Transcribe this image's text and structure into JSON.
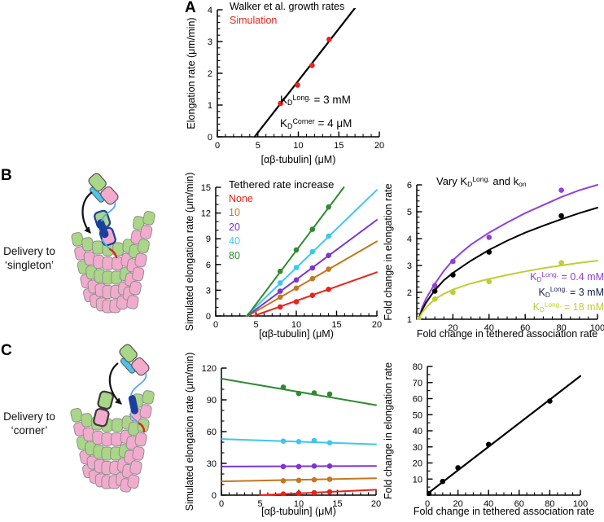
{
  "figure": {
    "panels": [
      {
        "id": "A",
        "label": "A"
      },
      {
        "id": "B",
        "label": "B",
        "caption": [
          "Delivery to",
          "‘singleton’"
        ]
      },
      {
        "id": "C",
        "label": "C",
        "caption": [
          "Delivery to",
          "‘corner’"
        ]
      }
    ]
  },
  "colors": {
    "red": "#e8231a",
    "orange": "#c4771f",
    "purple": "#7b35d2",
    "cyan": "#3dc6f2",
    "green": "#2e8b30",
    "fold_purple": "#9240d8",
    "fold_black": "#000000",
    "fold_black_label": "#15234d",
    "fold_yellow": "#bfce33",
    "lattice_green": "#aad687",
    "lattice_pink": "#f2abcd",
    "tether_blue": "#55a8e8",
    "motor_navy": "#1c3f9e",
    "tip_red": "#e02418"
  },
  "chart_data": [
    {
      "id": "panel_a",
      "type": "scatter",
      "xlabel": "[αβ-tubulin] (μM)",
      "ylabel": "Elongation rate (μm/min)",
      "xlim": [
        0,
        20
      ],
      "ylim": [
        0,
        4
      ],
      "xticks": [
        0,
        5,
        10,
        15,
        20
      ],
      "xminor": 1,
      "yticks": [
        0,
        1,
        2,
        3,
        4
      ],
      "yminor": 0.2,
      "grid": false,
      "legend": {
        "items": [
          {
            "text": "Walker et al. growth rates",
            "color": "#000000"
          },
          {
            "text": "Simulation",
            "color": "#e8231a"
          }
        ]
      },
      "annotations": [
        {
          "text": "K{_D}{^Long.} = 3 mM",
          "color": "#000000"
        },
        {
          "text": "K{_D}{^Corner} = 4 μM",
          "color": "#000000"
        }
      ],
      "series": [
        {
          "name": "fit-line",
          "color": "#000000",
          "width": 2.2,
          "line": [
            [
              4.6,
              0
            ],
            [
              17.2,
              4.12
            ]
          ]
        },
        {
          "name": "simulation",
          "color": "#e8231a",
          "points": [
            [
              7.8,
              1.05
            ],
            [
              9.9,
              1.63
            ],
            [
              11.7,
              2.25
            ],
            [
              13.8,
              3.07
            ]
          ]
        }
      ]
    },
    {
      "id": "panel_b_rates",
      "type": "scatter",
      "xlabel": "[αβ-tubulin] (μM)",
      "ylabel": "Simulated elongation rate (μm/min)",
      "xlim": [
        0,
        20
      ],
      "ylim": [
        0,
        15
      ],
      "xticks": [
        0,
        5,
        10,
        15,
        20
      ],
      "xminor": 1,
      "yticks": [
        0,
        3,
        6,
        9,
        12,
        15
      ],
      "yminor": 1,
      "grid": false,
      "legend": {
        "heading": "Tethered rate increase",
        "items": [
          {
            "text": "None",
            "color": "#e8231a"
          },
          {
            "text": "10",
            "color": "#c4771f"
          },
          {
            "text": "20",
            "color": "#7b35d2"
          },
          {
            "text": "40",
            "color": "#3dc6f2"
          },
          {
            "text": "80",
            "color": "#2e8b30"
          }
        ]
      },
      "series": [
        {
          "name": "none",
          "color": "#e8231a",
          "width": 2,
          "line": [
            [
              4.7,
              0
            ],
            [
              20,
              5.1
            ]
          ],
          "points": [
            [
              8,
              1.05
            ],
            [
              10,
              1.65
            ],
            [
              12,
              2.4
            ],
            [
              14,
              3.1
            ]
          ]
        },
        {
          "name": "tethered-10x",
          "color": "#c4771f",
          "width": 2,
          "line": [
            [
              4.0,
              0
            ],
            [
              20,
              8.7
            ]
          ],
          "points": [
            [
              8,
              2.2
            ],
            [
              10,
              3.25
            ],
            [
              12,
              4.35
            ],
            [
              14,
              5.45
            ]
          ]
        },
        {
          "name": "tethered-20x",
          "color": "#7b35d2",
          "width": 2,
          "line": [
            [
              3.9,
              0
            ],
            [
              20,
              11.2
            ]
          ],
          "points": [
            [
              8,
              2.9
            ],
            [
              10,
              4.2
            ],
            [
              12,
              5.6
            ],
            [
              14,
              7.05
            ]
          ]
        },
        {
          "name": "tethered-40x",
          "color": "#3dc6f2",
          "width": 2,
          "line": [
            [
              3.8,
              0
            ],
            [
              20,
              14.7
            ]
          ],
          "points": [
            [
              8,
              3.85
            ],
            [
              10,
              5.65
            ],
            [
              12,
              7.5
            ],
            [
              14,
              9.3
            ]
          ]
        },
        {
          "name": "tethered-80x",
          "color": "#2e8b30",
          "width": 2,
          "line": [
            [
              3.9,
              0
            ],
            [
              15.9,
              15
            ]
          ],
          "points": [
            [
              8,
              5.2
            ],
            [
              10,
              7.7
            ],
            [
              12,
              10.1
            ],
            [
              14,
              12.7
            ]
          ]
        }
      ]
    },
    {
      "id": "panel_b_fold",
      "type": "scatter",
      "title": "Vary K{_D}{^Long.} and k{_on}",
      "xlabel": "Fold change in tethered association rate",
      "ylabel": "Fold change in elongation rate",
      "xlim": [
        0,
        100
      ],
      "ylim": [
        1,
        6
      ],
      "xticks": [
        20,
        40,
        60,
        80,
        100
      ],
      "xminor": 5,
      "yticks": [
        1,
        2,
        3,
        4,
        5,
        6
      ],
      "yminor": 0.2,
      "grid": false,
      "legend": {
        "items": [
          {
            "text": "K{_D}{^Long.} = 0.4 mM",
            "color": "#9240d8"
          },
          {
            "text": "K{_D}{^Long.} = 3 mM",
            "color": "#15234d"
          },
          {
            "text": "K{_D}{^Long.} = 18 mM",
            "color": "#bfce33"
          }
        ]
      },
      "series": [
        {
          "name": "kd-0.4mM",
          "color": "#9240d8",
          "width": 2,
          "line": [
            [
              1,
              1
            ],
            [
              3,
              1.45
            ],
            [
              5,
              1.75
            ],
            [
              8,
              2.1
            ],
            [
              10,
              2.32
            ],
            [
              15,
              2.8
            ],
            [
              20,
              3.2
            ],
            [
              25,
              3.5
            ],
            [
              30,
              3.78
            ],
            [
              40,
              4.22
            ],
            [
              50,
              4.6
            ],
            [
              60,
              4.95
            ],
            [
              70,
              5.25
            ],
            [
              80,
              5.55
            ],
            [
              90,
              5.8
            ],
            [
              100,
              6.0
            ]
          ],
          "points": [
            [
              1,
              1
            ],
            [
              10,
              2.25
            ],
            [
              20,
              3.15
            ],
            [
              40,
              4.05
            ],
            [
              80,
              5.8
            ]
          ]
        },
        {
          "name": "kd-3mM",
          "color": "#000000",
          "width": 2,
          "line": [
            [
              1,
              1
            ],
            [
              3,
              1.35
            ],
            [
              5,
              1.6
            ],
            [
              8,
              1.9
            ],
            [
              10,
              2.08
            ],
            [
              15,
              2.45
            ],
            [
              20,
              2.72
            ],
            [
              25,
              2.95
            ],
            [
              30,
              3.18
            ],
            [
              40,
              3.58
            ],
            [
              50,
              3.92
            ],
            [
              60,
              4.22
            ],
            [
              70,
              4.48
            ],
            [
              80,
              4.72
            ],
            [
              90,
              4.95
            ],
            [
              100,
              5.15
            ]
          ],
          "points": [
            [
              1,
              1
            ],
            [
              10,
              2.05
            ],
            [
              20,
              2.65
            ],
            [
              40,
              3.5
            ],
            [
              80,
              4.85
            ]
          ]
        },
        {
          "name": "kd-18mM",
          "color": "#bfce33",
          "width": 2,
          "line": [
            [
              1,
              1
            ],
            [
              3,
              1.25
            ],
            [
              5,
              1.42
            ],
            [
              8,
              1.62
            ],
            [
              10,
              1.74
            ],
            [
              15,
              1.95
            ],
            [
              20,
              2.1
            ],
            [
              25,
              2.22
            ],
            [
              30,
              2.33
            ],
            [
              40,
              2.5
            ],
            [
              50,
              2.65
            ],
            [
              60,
              2.78
            ],
            [
              70,
              2.9
            ],
            [
              80,
              3.0
            ],
            [
              90,
              3.1
            ],
            [
              100,
              3.18
            ]
          ],
          "points": [
            [
              1,
              1
            ],
            [
              10,
              1.75
            ],
            [
              20,
              2.0
            ],
            [
              40,
              2.4
            ],
            [
              80,
              3.1
            ]
          ]
        }
      ]
    },
    {
      "id": "panel_c_rates",
      "type": "scatter",
      "xlabel": "[αβ-tubulin] (μM)",
      "ylabel": "Simulated elongation rate (μm/min)",
      "xlim": [
        0,
        20
      ],
      "ylim": [
        0,
        120
      ],
      "xticks": [
        0,
        5,
        10,
        15,
        20
      ],
      "xminor": 1,
      "yticks": [
        0,
        30,
        60,
        90,
        120
      ],
      "yminor": 10,
      "grid": false,
      "series": [
        {
          "name": "tethered-80x",
          "color": "#2e8b30",
          "width": 2,
          "line": [
            [
              0,
              110
            ],
            [
              20,
              85
            ]
          ],
          "points": [
            [
              8,
              102
            ],
            [
              10,
              96
            ],
            [
              12,
              96.5
            ],
            [
              14,
              95.5
            ]
          ]
        },
        {
          "name": "tethered-40x",
          "color": "#3dc6f2",
          "width": 2,
          "line": [
            [
              0,
              53
            ],
            [
              20,
              48
            ]
          ],
          "points": [
            [
              8,
              51
            ],
            [
              10,
              50.5
            ],
            [
              12,
              51.5
            ],
            [
              14,
              49.5
            ]
          ]
        },
        {
          "name": "tethered-20x",
          "color": "#7b35d2",
          "width": 2,
          "line": [
            [
              0,
              27
            ],
            [
              20,
              27.5
            ]
          ],
          "points": [
            [
              8,
              27
            ],
            [
              10,
              27
            ],
            [
              12,
              27.5
            ],
            [
              14,
              27.5
            ]
          ]
        },
        {
          "name": "tethered-10x",
          "color": "#c4771f",
          "width": 2,
          "line": [
            [
              0,
              13
            ],
            [
              20,
              16
            ]
          ],
          "points": [
            [
              8,
              13.5
            ],
            [
              10,
              14
            ],
            [
              12,
              14.5
            ],
            [
              14,
              15
            ]
          ]
        },
        {
          "name": "none",
          "color": "#e8231a",
          "width": 2,
          "line": [
            [
              5,
              0
            ],
            [
              20,
              5.1
            ]
          ],
          "points": [
            [
              8,
              1
            ],
            [
              10,
              1.8
            ],
            [
              12,
              2.3
            ],
            [
              14,
              3
            ]
          ]
        }
      ]
    },
    {
      "id": "panel_c_fold",
      "type": "scatter",
      "xlabel": "Fold change in tethered association rate",
      "ylabel": "Fold change in elongation rate",
      "xlim": [
        0,
        100
      ],
      "ylim": [
        0,
        80
      ],
      "xticks": [
        0,
        20,
        40,
        60,
        80,
        100
      ],
      "xminor": 5,
      "yticks": [
        10,
        20,
        30,
        40,
        50,
        60,
        70,
        80
      ],
      "yminor": 5,
      "grid": false,
      "series": [
        {
          "name": "linear-fold",
          "color": "#000000",
          "width": 2.2,
          "line": [
            [
              0,
              0.8
            ],
            [
              100,
              74
            ]
          ],
          "points": [
            [
              1,
              1
            ],
            [
              10,
              8.5
            ],
            [
              20,
              17
            ],
            [
              40,
              31.5
            ],
            [
              80,
              58.5
            ]
          ]
        }
      ]
    }
  ]
}
